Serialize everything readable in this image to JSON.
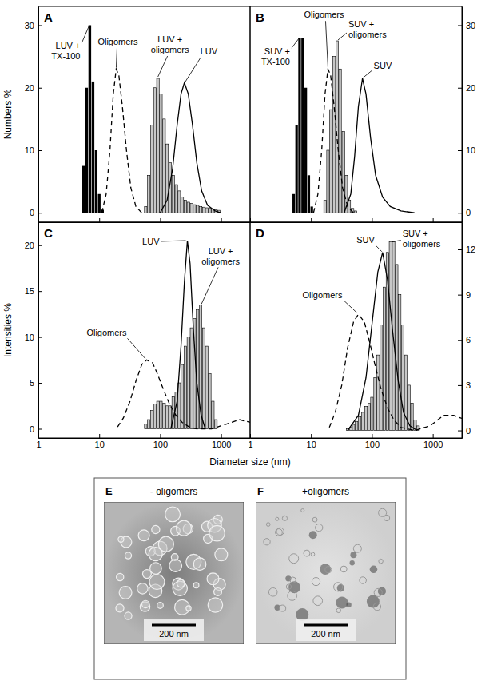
{
  "chart_data": [
    {
      "type": "combo",
      "panel": "A",
      "ylabel": "Numbers %",
      "log": "x",
      "xlim": [
        1,
        3000
      ],
      "xticks": [
        1,
        10,
        100,
        1000
      ],
      "ylim": [
        -1.5,
        33
      ],
      "yticks": [
        0,
        10,
        20,
        30
      ],
      "tick_labels": "y",
      "series": [
        {
          "name": "LUV + TX-100",
          "type": "bar",
          "color": "#000000",
          "x": [
            5.5,
            6.2,
            7.0,
            7.9,
            8.9,
            10,
            11.3
          ],
          "values": [
            7.5,
            20,
            30,
            21,
            10,
            3,
            0.5
          ]
        },
        {
          "name": "Oligomers",
          "type": "line",
          "color": "#000000",
          "line_style": "dashed",
          "x": [
            11,
            13,
            15,
            17,
            19,
            21,
            24,
            28,
            33,
            40,
            50
          ],
          "values": [
            0,
            3,
            10,
            19,
            23,
            22,
            17,
            10,
            4,
            1,
            0
          ]
        },
        {
          "name": "LUV + oligomers",
          "type": "bar",
          "color": "#c8c8c8",
          "x": [
            58,
            65,
            73,
            82,
            92,
            103,
            116,
            130,
            146,
            164,
            184,
            206,
            231,
            259,
            291,
            327,
            367,
            412,
            462,
            519,
            582,
            653,
            733,
            823,
            924
          ],
          "values": [
            1,
            6,
            14,
            20,
            21.5,
            19,
            15,
            11,
            8,
            6,
            4.5,
            3.5,
            2.5,
            2,
            1.7,
            1.5,
            1.3,
            1.2,
            1,
            0.9,
            0.8,
            0.7,
            0.6,
            0.5,
            0.4
          ]
        },
        {
          "name": "LUV",
          "type": "line",
          "color": "#000000",
          "line_style": "solid",
          "x": [
            100,
            130,
            160,
            190,
            220,
            250,
            290,
            340,
            400,
            480,
            600,
            800,
            1000
          ],
          "values": [
            0,
            2,
            7,
            14,
            19,
            20.8,
            19,
            14,
            8,
            3.5,
            1.2,
            0.3,
            0
          ]
        }
      ]
    },
    {
      "type": "combo",
      "panel": "B",
      "log": "x",
      "xlim": [
        1,
        3000
      ],
      "xticks": [
        1,
        10,
        100,
        1000
      ],
      "ylim": [
        -1.5,
        33
      ],
      "yticks": [
        0,
        10,
        20,
        30
      ],
      "tick_labels": "y",
      "series": [
        {
          "name": "SUV + TX-100",
          "type": "bar",
          "color": "#000000",
          "x": [
            5.2,
            5.8,
            6.5,
            7.3,
            8.2,
            9.2,
            10.3
          ],
          "values": [
            3,
            14,
            28,
            28,
            20,
            6,
            1
          ]
        },
        {
          "name": "Oligomers",
          "type": "line",
          "color": "#000000",
          "line_style": "dashed",
          "x": [
            11,
            13,
            15,
            17,
            19,
            21,
            24,
            28,
            33,
            40,
            50
          ],
          "values": [
            0,
            3,
            10,
            19,
            23,
            22,
            17,
            10,
            4,
            1,
            0
          ]
        },
        {
          "name": "SUV + oligomers",
          "type": "bar",
          "color": "#c8c8c8",
          "x": [
            17,
            19,
            21.3,
            24,
            26.9,
            30,
            34,
            38,
            42.5,
            48,
            54
          ],
          "values": [
            2,
            10,
            16.5,
            25,
            27.5,
            23,
            13,
            6,
            2,
            0.7,
            0.3
          ]
        },
        {
          "name": "SUV",
          "type": "line",
          "color": "#000000",
          "line_style": "solid",
          "x": [
            35,
            45,
            52,
            60,
            70,
            80,
            95,
            115,
            150,
            200,
            300,
            500
          ],
          "values": [
            0,
            3,
            9,
            17,
            21.5,
            19,
            12,
            6,
            2.5,
            1,
            0.3,
            0
          ]
        }
      ]
    },
    {
      "type": "combo",
      "panel": "C",
      "ylabel": "Intensities %",
      "xlabel": "Diameter size (nm)",
      "log": "x",
      "xlim": [
        1,
        3000
      ],
      "xticks": [
        1,
        10,
        100,
        1000
      ],
      "ylim": [
        -1,
        22.5
      ],
      "yticks": [
        0,
        5,
        10,
        15,
        20
      ],
      "series": [
        {
          "name": "LUV",
          "type": "line",
          "color": "#000000",
          "line_style": "solid",
          "x": [
            150,
            190,
            220,
            250,
            280,
            310,
            350,
            400,
            470,
            550
          ],
          "values": [
            0,
            3,
            9,
            16,
            20.5,
            18,
            11,
            5,
            1.5,
            0
          ]
        },
        {
          "name": "Oligomers",
          "type": "line",
          "color": "#000000",
          "line_style": "dashed",
          "x": [
            20,
            25,
            32,
            40,
            50,
            60,
            75,
            90,
            110,
            140,
            180,
            230,
            300,
            400,
            700,
            1200,
            2000,
            3000
          ],
          "values": [
            0.2,
            1.2,
            3,
            5.2,
            7,
            7.5,
            7.2,
            6,
            4.5,
            2.8,
            1.5,
            0.7,
            0.2,
            0,
            0,
            0.5,
            1,
            0.7
          ]
        },
        {
          "name": "LUV + oligomers",
          "type": "bar",
          "color": "#c8c8c8",
          "x": [
            58,
            65,
            73,
            82,
            92,
            103,
            116,
            130,
            146,
            164,
            184,
            206,
            231,
            259,
            291,
            327,
            367,
            412,
            462,
            519,
            582,
            653,
            733,
            823
          ],
          "values": [
            0.5,
            1,
            2,
            2.7,
            3,
            3,
            2.8,
            2.5,
            2.5,
            3.5,
            4,
            5,
            7,
            9,
            10,
            11,
            12,
            13,
            13.5,
            11,
            9,
            6,
            3,
            1
          ]
        }
      ]
    },
    {
      "type": "combo",
      "panel": "D",
      "log": "x",
      "xlim": [
        1,
        3000
      ],
      "xticks": [
        1,
        10,
        100,
        1000
      ],
      "ylim": [
        -0.5,
        13.8
      ],
      "yticks": [
        0,
        3,
        6,
        9,
        12
      ],
      "series": [
        {
          "name": "SUV",
          "type": "line",
          "color": "#000000",
          "line_style": "solid",
          "x": [
            40,
            60,
            80,
            100,
            125,
            150,
            180,
            220,
            270,
            330,
            420,
            550
          ],
          "values": [
            0,
            1,
            3.5,
            7,
            10.5,
            11.8,
            10,
            6.5,
            3.3,
            1.2,
            0.3,
            0
          ]
        },
        {
          "name": "Oligomers",
          "type": "line",
          "color": "#000000",
          "line_style": "dashed",
          "x": [
            20,
            25,
            32,
            40,
            50,
            60,
            75,
            90,
            110,
            140,
            180,
            230,
            300,
            500,
            900,
            1500,
            2200,
            3000
          ],
          "values": [
            0.2,
            1.2,
            3,
            5.5,
            7.2,
            7.7,
            7.2,
            6,
            4.5,
            2.8,
            1.5,
            0.7,
            0.2,
            0,
            0.3,
            1,
            1,
            0.8
          ]
        },
        {
          "name": "SUV + oligomers",
          "type": "bar",
          "color": "#c8c8c8",
          "x": [
            40,
            45,
            50,
            56,
            63,
            71,
            80,
            90,
            100,
            113,
            127,
            143,
            160,
            180,
            202,
            227,
            255,
            286,
            321,
            360,
            405,
            455,
            511,
            574
          ],
          "values": [
            0.1,
            0.2,
            0.4,
            0.6,
            0.9,
            1.2,
            1.6,
            1.8,
            2.2,
            3.5,
            5,
            7,
            9.5,
            11.8,
            12.5,
            12.5,
            11,
            9,
            7,
            5,
            3,
            1.8,
            0.7,
            0.3
          ]
        }
      ]
    }
  ],
  "micrographs": {
    "panels": [
      {
        "letter": "E",
        "title": "- oligomers",
        "scale_bar": "200 nm"
      },
      {
        "letter": "F",
        "title": "+oligomers",
        "scale_bar": "200 nm"
      }
    ]
  }
}
